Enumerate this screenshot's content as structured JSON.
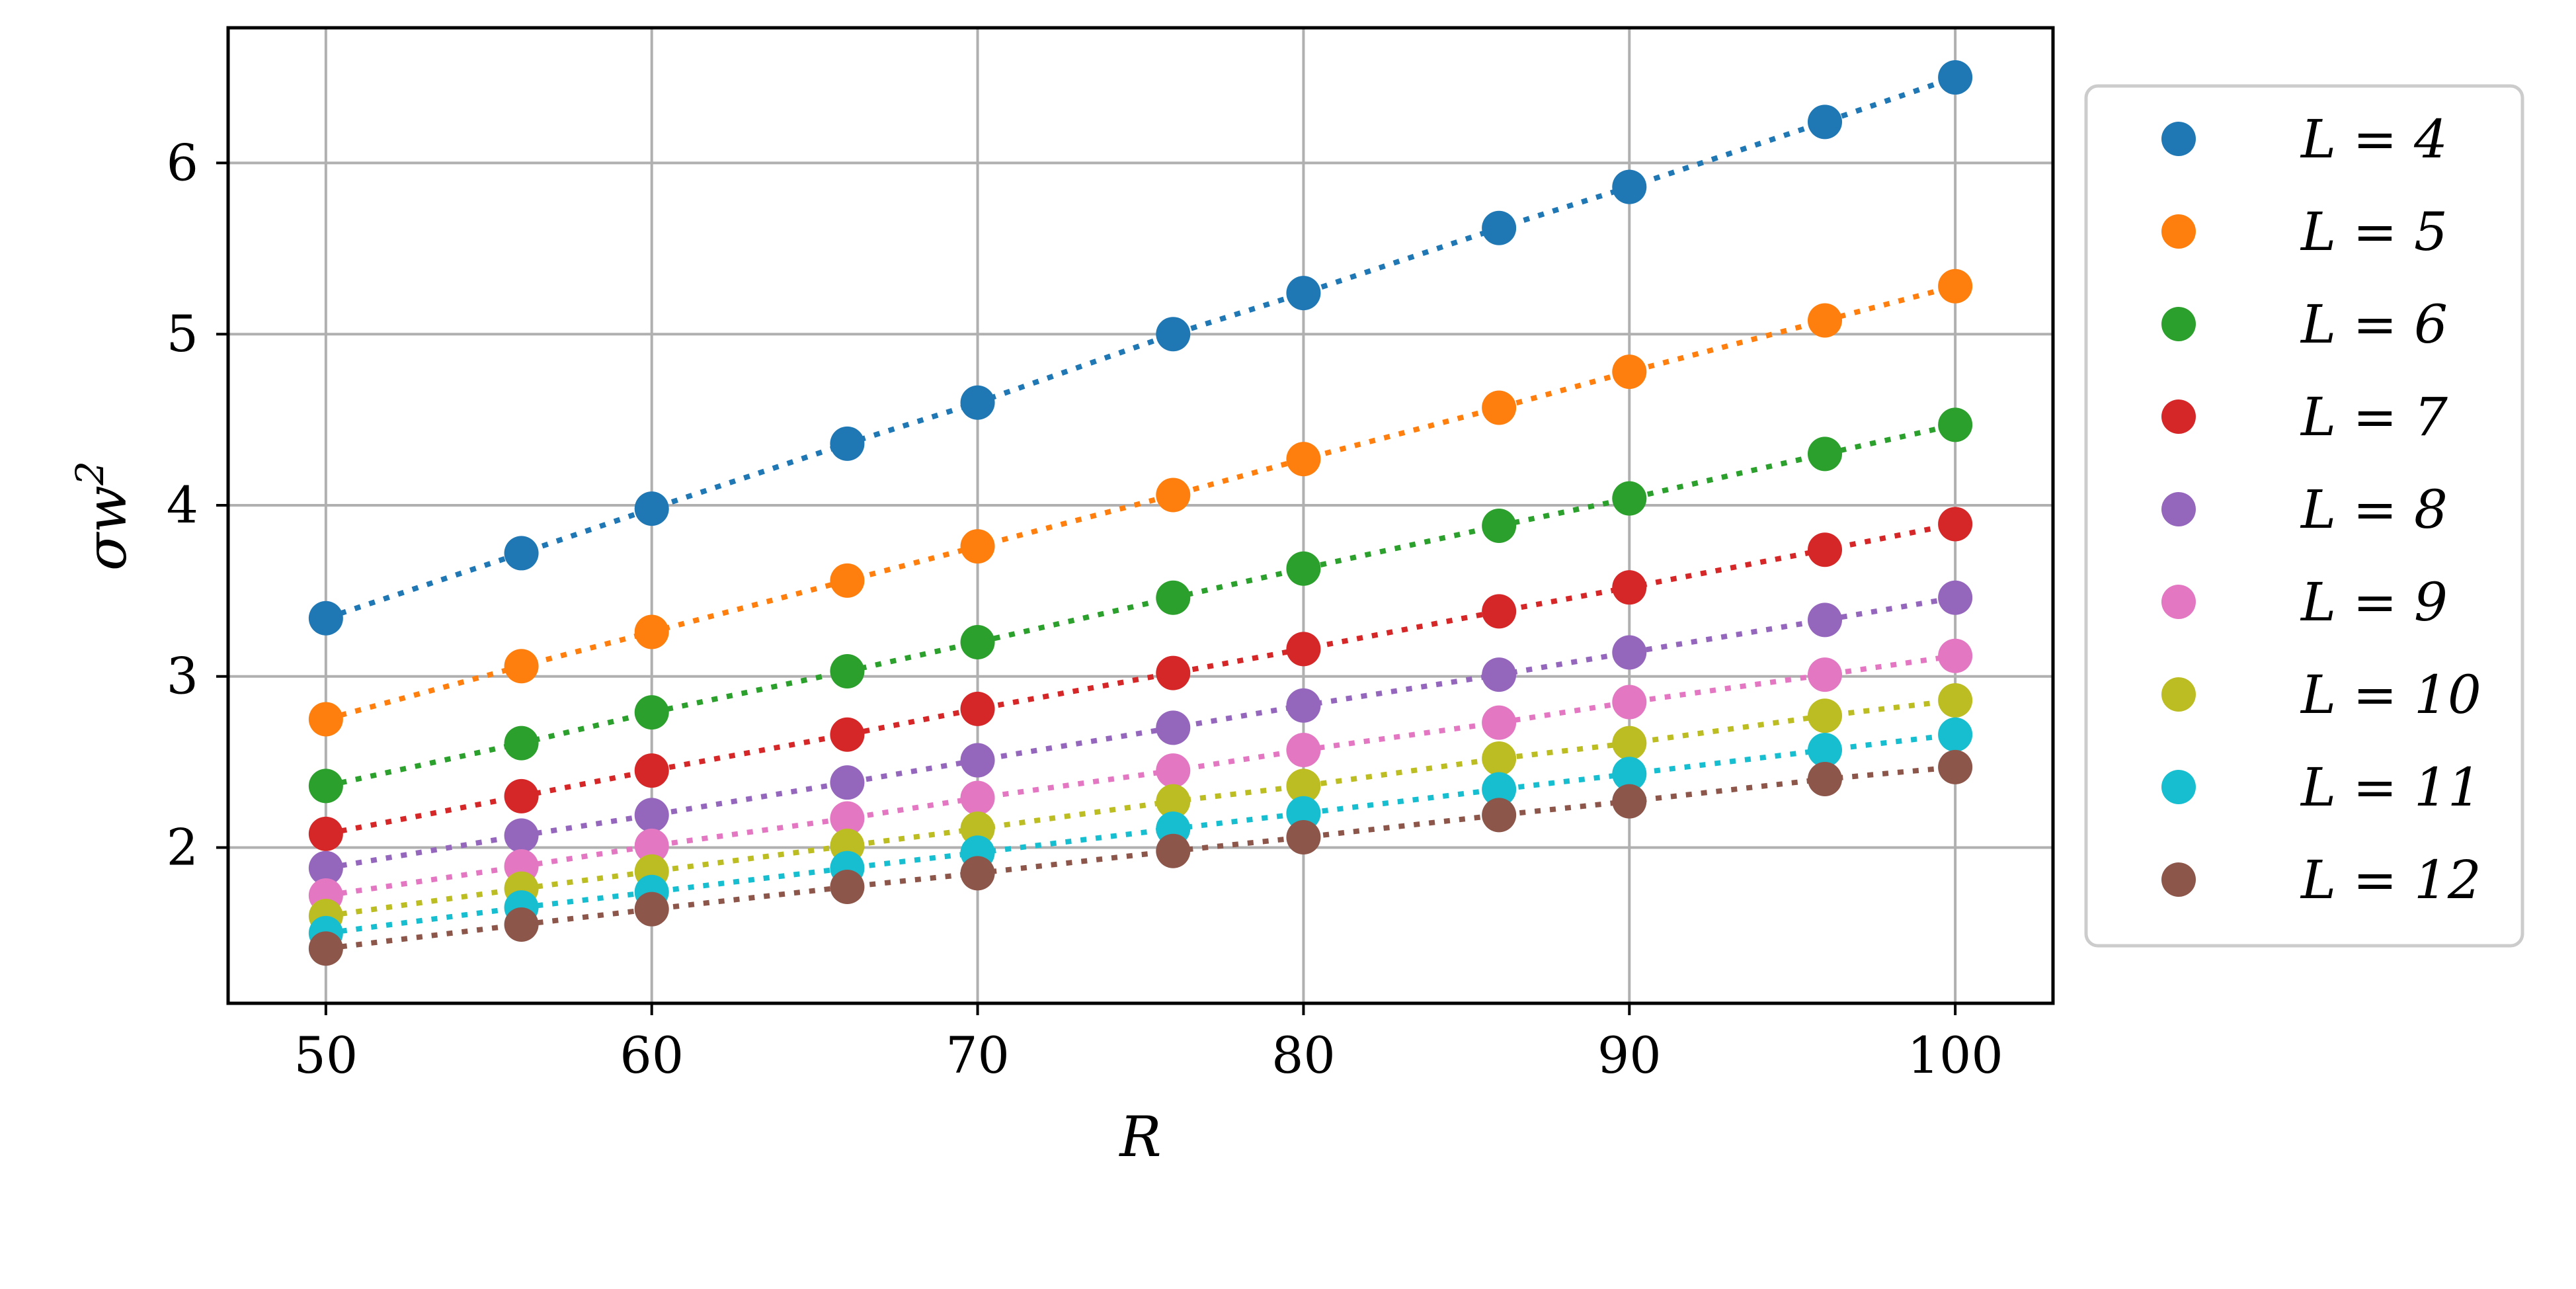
{
  "chart_data": {
    "type": "scatter",
    "title": "",
    "xlabel": "R",
    "ylabel": "σw²",
    "ylabel_parts": {
      "base": "σw",
      "sup": "2"
    },
    "x": [
      50,
      56,
      60,
      66,
      70,
      76,
      80,
      86,
      90,
      96,
      100
    ],
    "xlim": [
      47,
      103
    ],
    "ylim": [
      1.09,
      6.79
    ],
    "xticks": [
      50,
      60,
      70,
      80,
      90,
      100
    ],
    "yticks": [
      2,
      3,
      4,
      5,
      6
    ],
    "grid": true,
    "legend_position": "right-outside",
    "series": [
      {
        "name": "L = 4",
        "color": "#1f77b4",
        "values": [
          3.34,
          3.72,
          3.98,
          4.36,
          4.6,
          5.0,
          5.24,
          5.62,
          5.86,
          6.24,
          6.5
        ]
      },
      {
        "name": "L = 5",
        "color": "#ff7f0e",
        "values": [
          2.75,
          3.06,
          3.26,
          3.56,
          3.76,
          4.06,
          4.27,
          4.57,
          4.78,
          5.08,
          5.28
        ]
      },
      {
        "name": "L = 6",
        "color": "#2ca02c",
        "values": [
          2.36,
          2.61,
          2.79,
          3.03,
          3.2,
          3.46,
          3.63,
          3.88,
          4.04,
          4.3,
          4.47
        ]
      },
      {
        "name": "L = 7",
        "color": "#d62728",
        "values": [
          2.08,
          2.3,
          2.45,
          2.66,
          2.81,
          3.02,
          3.16,
          3.38,
          3.52,
          3.74,
          3.89
        ]
      },
      {
        "name": "L = 8",
        "color": "#9467bd",
        "values": [
          1.88,
          2.07,
          2.19,
          2.38,
          2.51,
          2.7,
          2.83,
          3.01,
          3.14,
          3.33,
          3.46
        ]
      },
      {
        "name": "L = 9",
        "color": "#e377c2",
        "values": [
          1.72,
          1.89,
          2.01,
          2.17,
          2.29,
          2.45,
          2.57,
          2.73,
          2.85,
          3.01,
          3.12
        ]
      },
      {
        "name": "L = 10",
        "color": "#bcbd22",
        "values": [
          1.6,
          1.76,
          1.86,
          2.01,
          2.11,
          2.27,
          2.36,
          2.52,
          2.61,
          2.77,
          2.86
        ]
      },
      {
        "name": "L = 11",
        "color": "#17becf",
        "values": [
          1.5,
          1.65,
          1.74,
          1.88,
          1.97,
          2.11,
          2.2,
          2.34,
          2.43,
          2.57,
          2.66
        ]
      },
      {
        "name": "L = 12",
        "color": "#8c564b",
        "values": [
          1.41,
          1.55,
          1.64,
          1.77,
          1.85,
          1.98,
          2.06,
          2.19,
          2.27,
          2.4,
          2.47
        ]
      }
    ]
  }
}
